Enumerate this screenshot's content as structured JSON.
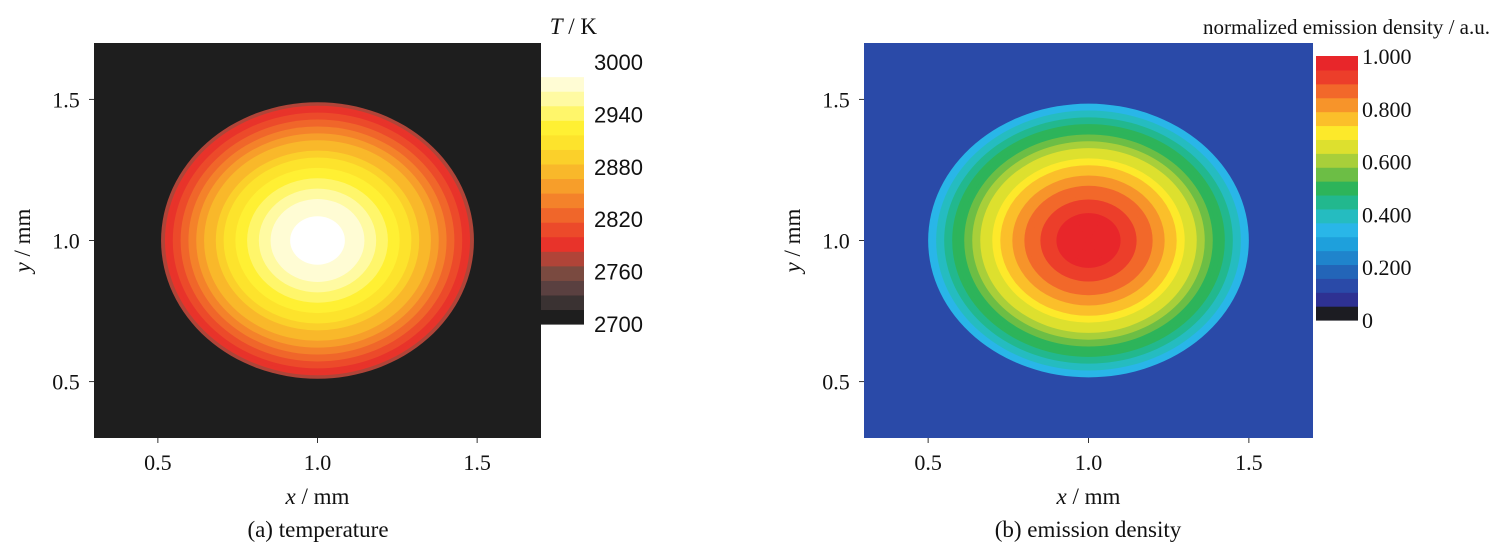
{
  "chart_data": [
    {
      "type": "heatmap",
      "panel_label": "(a) temperature",
      "xlabel": {
        "var": "x",
        "unit": " / mm"
      },
      "ylabel": {
        "var": "y",
        "unit": " / mm"
      },
      "xlim": [
        0.3,
        1.7
      ],
      "ylim": [
        0.3,
        1.7
      ],
      "x_ticks": [
        "0.5",
        "1.0",
        "1.5"
      ],
      "y_ticks": [
        "0.5",
        "1.0",
        "1.5"
      ],
      "x_tick_values": [
        0.5,
        1.0,
        1.5
      ],
      "y_tick_values": [
        0.5,
        1.0,
        1.5
      ],
      "field": {
        "center": [
          1.0,
          1.0
        ],
        "radius_x": 0.49,
        "radius_y": 0.49,
        "center_value": 3000,
        "edge_value": 2780,
        "background_value": 2700
      },
      "colorbar": {
        "title_var": "T",
        "title_unit": " / K",
        "range": [
          2700,
          3000
        ],
        "tick_values": [
          3000,
          2940,
          2880,
          2820,
          2760,
          2700
        ],
        "tick_labels": [
          "3000",
          "2940",
          "2880",
          "2820",
          "2760",
          "2700"
        ],
        "colors": [
          "#1e1e1e",
          "#3a3232",
          "#5a4040",
          "#7a4a40",
          "#b04438",
          "#e8332a",
          "#ec4a2a",
          "#f0662a",
          "#f4822a",
          "#f79e2a",
          "#f9b82a",
          "#fbd02a",
          "#fde32c",
          "#fff033",
          "#fff66a",
          "#fffaa2",
          "#fffcd4",
          "#ffffff"
        ]
      }
    },
    {
      "type": "heatmap",
      "panel_label": "(b) emission density",
      "xlabel": {
        "var": "x",
        "unit": " / mm"
      },
      "ylabel": {
        "var": "y",
        "unit": " / mm"
      },
      "xlim": [
        0.3,
        1.7
      ],
      "ylim": [
        0.3,
        1.7
      ],
      "x_ticks": [
        "0.5",
        "1.0",
        "1.5"
      ],
      "y_ticks": [
        "0.5",
        "1.0",
        "1.5"
      ],
      "x_tick_values": [
        0.5,
        1.0,
        1.5
      ],
      "y_tick_values": [
        0.5,
        1.0,
        1.5
      ],
      "field": {
        "center": [
          1.0,
          1.0
        ],
        "radius_x": 0.5,
        "radius_y": 0.485,
        "center_value": 1.0,
        "edge_value": 0.32,
        "background_value": 0.12
      },
      "colorbar": {
        "title": "normalized emission density / a.u.",
        "range": [
          0,
          1.0
        ],
        "tick_values": [
          1.0,
          0.8,
          0.6,
          0.4,
          0.2,
          0
        ],
        "tick_labels": [
          "1.000",
          "0.800",
          "0.600",
          "0.400",
          "0.200",
          "0"
        ],
        "colors": [
          "#1c1c22",
          "#2e3192",
          "#2a4aa8",
          "#2365b8",
          "#1f84cc",
          "#1ea0dc",
          "#29b6e8",
          "#25bcc0",
          "#22b88e",
          "#2db45a",
          "#6cbe45",
          "#a8cf3a",
          "#dde02e",
          "#fde92a",
          "#fbbf2a",
          "#f7942a",
          "#f2682a",
          "#ec3e2a",
          "#e8262a"
        ]
      }
    }
  ]
}
